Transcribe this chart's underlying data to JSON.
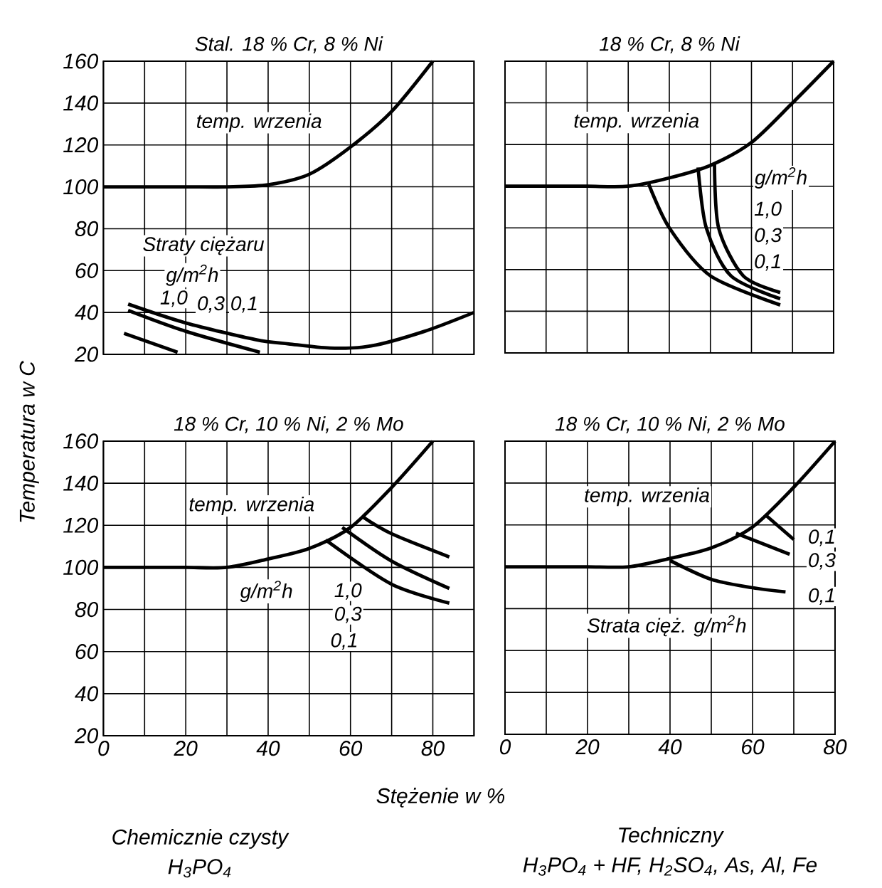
{
  "chart_data": [
    {
      "type": "line",
      "title": "Stal. 18 % Cr, 8 % Ni",
      "ylabel": "Temperatura w C",
      "xlim": [
        0,
        90
      ],
      "ylim": [
        20,
        160
      ],
      "xticks": [
        0,
        {
          "value": 10,
          "label": null
        },
        20,
        {
          "value": 30,
          "label": null
        },
        40,
        {
          "value": 50,
          "label": null
        },
        60,
        {
          "value": 70,
          "label": null
        },
        80,
        {
          "value": 90,
          "label": null
        }
      ],
      "yticks": [
        20,
        40,
        60,
        80,
        100,
        120,
        140,
        160
      ],
      "grid": true,
      "tick_labels": "y",
      "series": [
        {
          "color": "#000000",
          "x": [
            0,
            10,
            20,
            30,
            40,
            50,
            60,
            70,
            80
          ],
          "values": [
            100,
            100,
            100,
            100,
            101,
            106,
            119,
            136,
            160
          ]
        },
        {
          "color": "#000000",
          "x": [
            6,
            20,
            37,
            45,
            55,
            65,
            78,
            90
          ],
          "values": [
            44,
            35,
            27,
            25,
            23,
            24,
            31,
            40
          ]
        },
        {
          "color": "#000000",
          "x": [
            6,
            20,
            38
          ],
          "values": [
            41,
            31,
            21
          ]
        },
        {
          "color": "#000000",
          "x": [
            5,
            18
          ],
          "values": [
            30,
            21
          ]
        }
      ],
      "annotations": [
        "temp. wrzenia",
        "Straty ciężaru",
        "g/m$^{2}$h",
        "1,0",
        "0,3",
        "0,1"
      ]
    },
    {
      "type": "line",
      "title": "18 % Cr, 8 % Ni",
      "xlim": [
        0,
        80
      ],
      "ylim": [
        20,
        160
      ],
      "xticks": [
        0,
        {
          "value": 10,
          "label": null
        },
        20,
        {
          "value": 30,
          "label": null
        },
        40,
        {
          "value": 50,
          "label": null
        },
        60,
        {
          "value": 70,
          "label": null
        },
        80
      ],
      "yticks": [
        20,
        40,
        60,
        80,
        100,
        120,
        140,
        160
      ],
      "grid": true,
      "tick_labels": false,
      "series": [
        {
          "color": "#000000",
          "x": [
            0,
            10,
            20,
            30,
            40,
            50,
            60,
            70,
            80
          ],
          "values": [
            100,
            100,
            100,
            100,
            104,
            110,
            121,
            140,
            160
          ]
        },
        {
          "color": "#000000",
          "x": [
            35,
            40,
            50,
            67
          ],
          "values": [
            101,
            80,
            57,
            43
          ]
        },
        {
          "color": "#000000",
          "x": [
            47,
            49,
            55,
            67
          ],
          "values": [
            109,
            80,
            57,
            46
          ]
        },
        {
          "color": "#000000",
          "x": [
            51,
            52,
            58,
            67
          ],
          "values": [
            111,
            80,
            57,
            49
          ]
        }
      ],
      "annotations": [
        "temp. wrzenia",
        "g/m$^{2}$h",
        "1,0",
        "0,3",
        "0,1"
      ]
    },
    {
      "type": "line",
      "title": "18 % Cr, 10 % Ni, 2 % Mo",
      "xlabel": "Stężenie w %",
      "xlim": [
        0,
        90
      ],
      "ylim": [
        20,
        160
      ],
      "xticks": [
        0,
        {
          "value": 10,
          "label": null
        },
        20,
        {
          "value": 30,
          "label": null
        },
        40,
        {
          "value": 50,
          "label": null
        },
        60,
        {
          "value": 70,
          "label": null
        },
        80,
        {
          "value": 90,
          "label": null
        }
      ],
      "yticks": [
        20,
        40,
        60,
        80,
        100,
        120,
        140,
        160
      ],
      "grid": true,
      "series": [
        {
          "color": "#000000",
          "x": [
            0,
            10,
            20,
            30,
            40,
            50,
            60,
            70,
            80
          ],
          "values": [
            100,
            100,
            100,
            100,
            104,
            109,
            119,
            138,
            160
          ]
        },
        {
          "color": "#000000",
          "x": [
            63,
            70,
            84
          ],
          "values": [
            124,
            116,
            105
          ]
        },
        {
          "color": "#000000",
          "x": [
            58,
            70,
            84
          ],
          "values": [
            119,
            103,
            90
          ]
        },
        {
          "color": "#000000",
          "x": [
            54,
            70,
            84
          ],
          "values": [
            113,
            92,
            83
          ]
        }
      ],
      "annotations": [
        "temp. wrzenia",
        "g/m$^{2}$h",
        "1,0",
        "0,3",
        "0,1",
        "Chemicznie czysty",
        "H$_{3}$PO$_{4}$"
      ]
    },
    {
      "type": "line",
      "title": "18 % Cr, 10 % Ni, 2 % Mo",
      "xlim": [
        0,
        80
      ],
      "ylim": [
        20,
        160
      ],
      "xticks": [
        0,
        {
          "value": 10,
          "label": null
        },
        20,
        {
          "value": 30,
          "label": null
        },
        40,
        {
          "value": 50,
          "label": null
        },
        60,
        {
          "value": 70,
          "label": null
        },
        80
      ],
      "yticks": [
        20,
        40,
        60,
        80,
        100,
        120,
        140,
        160
      ],
      "grid": true,
      "tick_labels": "x",
      "series": [
        {
          "color": "#000000",
          "x": [
            0,
            10,
            20,
            30,
            40,
            50,
            60,
            70,
            80
          ],
          "values": [
            100,
            100,
            100,
            100,
            104,
            109,
            119,
            138,
            160
          ]
        },
        {
          "color": "#000000",
          "x": [
            63,
            70
          ],
          "values": [
            125,
            113
          ]
        },
        {
          "color": "#000000",
          "x": [
            56,
            69
          ],
          "values": [
            116,
            106
          ]
        },
        {
          "color": "#000000",
          "x": [
            40,
            50,
            60,
            68
          ],
          "values": [
            103,
            94,
            90,
            88
          ]
        }
      ],
      "annotations": [
        "temp. wrzenia",
        "0,1",
        "0,3",
        "0,1",
        "Strata cięż. g/m$^{2}$h",
        "Techniczny",
        "H$_{3}$PO$_{4}$ + HF, H$_{2}$SO$_{4}$, As, Al, Fe"
      ]
    }
  ]
}
